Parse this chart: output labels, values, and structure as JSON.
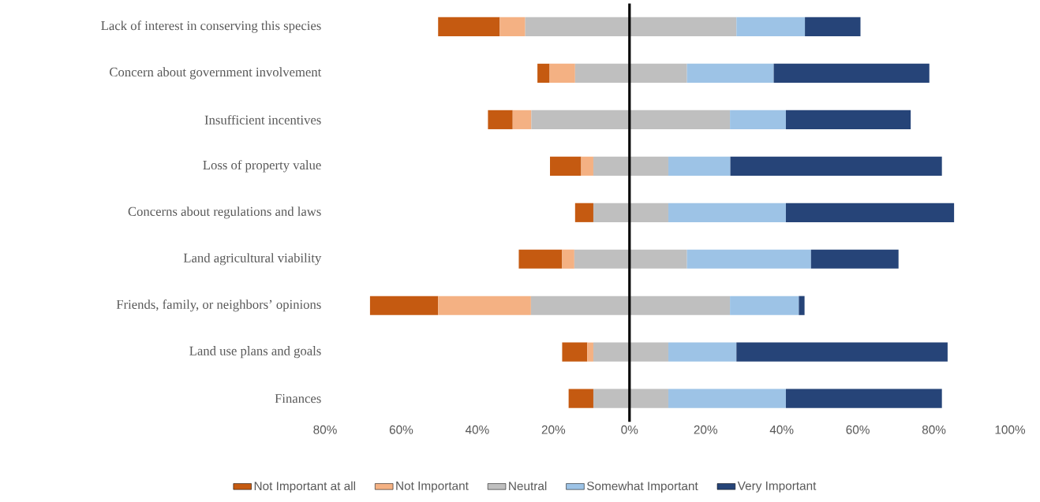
{
  "chart_data": {
    "type": "bar",
    "orientation": "horizontal",
    "legend": "bottom",
    "categories": [
      "Lack of interest in conserving this species",
      "Concern about government involvement",
      "Insufficient incentives",
      "Loss of property value",
      "Concerns about regulations and laws",
      "Land agricultural viability",
      "Friends, family, or neighbors’ opinions",
      "Land use plans and goals",
      "Finances"
    ],
    "series": [
      {
        "name": "Not Important at all",
        "color": "#c55a11",
        "base": [
          -50.3,
          -24.2,
          -37.2,
          -20.9,
          -14.3,
          -29.1,
          -68.2,
          -17.7,
          -16.0
        ],
        "values": [
          16.2,
          3.2,
          6.5,
          8.2,
          4.8,
          11.4,
          17.9,
          6.6,
          6.5
        ]
      },
      {
        "name": "Not Important",
        "color": "#f4b183",
        "base": [
          -34.1,
          -21.0,
          -30.7,
          -12.7,
          null,
          -17.7,
          -50.3,
          -11.1,
          null
        ],
        "values": [
          6.7,
          6.7,
          4.9,
          3.2,
          null,
          3.2,
          24.4,
          1.6,
          null
        ]
      },
      {
        "name": "Neutral",
        "color": "#bfbfbf",
        "base": [
          -27.4,
          -14.3,
          -25.8,
          -9.5,
          -9.5,
          -14.5,
          -25.9,
          -9.5,
          -9.5
        ],
        "values": [
          55.5,
          29.4,
          52.2,
          19.7,
          19.7,
          29.6,
          52.3,
          19.7,
          19.7
        ]
      },
      {
        "name": "Somewhat Important",
        "color": "#9dc3e6",
        "base": [
          28.1,
          15.1,
          26.4,
          10.2,
          10.2,
          15.1,
          26.4,
          10.2,
          10.2
        ],
        "values": [
          18.0,
          22.8,
          14.7,
          16.3,
          30.9,
          32.6,
          18.1,
          17.9,
          30.9
        ]
      },
      {
        "name": "Very Important",
        "color": "#264478",
        "base": [
          46.1,
          37.9,
          41.1,
          26.5,
          41.1,
          47.7,
          44.5,
          28.1,
          41.1
        ],
        "values": [
          14.6,
          40.9,
          32.8,
          55.6,
          44.2,
          23.0,
          1.5,
          55.5,
          41.0
        ]
      }
    ],
    "xlim": [
      -80,
      100
    ],
    "xticks": [
      {
        "value": -80,
        "label": "80%"
      },
      {
        "value": -60,
        "label": "60%"
      },
      {
        "value": -40,
        "label": "40%"
      },
      {
        "value": -20,
        "label": "20%"
      },
      {
        "value": 0,
        "label": "0%"
      },
      {
        "value": 20,
        "label": "20%"
      },
      {
        "value": 40,
        "label": "40%"
      },
      {
        "value": 60,
        "label": "60%"
      },
      {
        "value": 80,
        "label": "80%"
      },
      {
        "value": 100,
        "label": "100%"
      }
    ],
    "ref_lines": [
      {
        "axis": "x",
        "value": 0,
        "color": "#000000"
      }
    ]
  }
}
